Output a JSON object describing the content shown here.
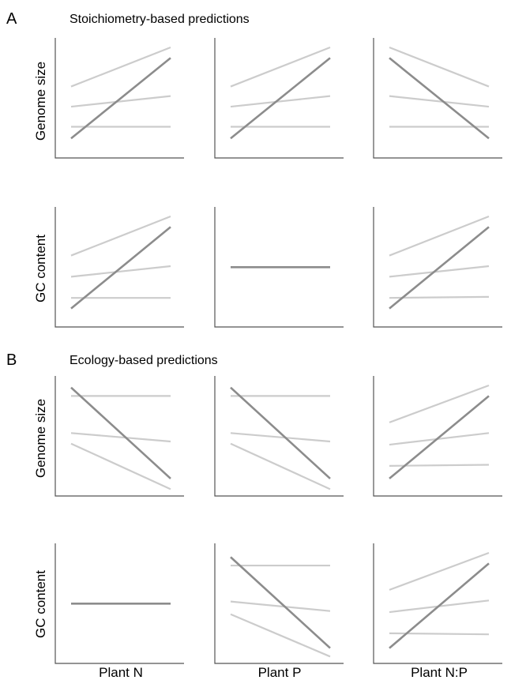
{
  "figure": {
    "sections": [
      {
        "letter": "A",
        "title": "Stoichiometry-based predictions"
      },
      {
        "letter": "B",
        "title": "Ecology-based predictions"
      }
    ],
    "row_labels": [
      "Genome size",
      "GC content",
      "Genome size",
      "GC content"
    ],
    "column_labels": [
      "Plant N",
      "Plant P",
      "Plant N:P"
    ]
  },
  "colors": {
    "emphasis_line": "#8c8c8c",
    "light_line": "#cccccc",
    "axis": "#555555"
  },
  "chart_data": {
    "type": "line",
    "note": "Schematic panels; y values are unitless (0 = bottom, 1 = top); each line goes from x=0 to x=1.",
    "panels": [
      {
        "section": "A",
        "row": "Genome size",
        "column": "Plant N",
        "lines": [
          {
            "style": "light",
            "y": [
              0.63,
              1.0
            ]
          },
          {
            "style": "light",
            "y": [
              0.44,
              0.54
            ]
          },
          {
            "style": "light",
            "y": [
              0.25,
              0.25
            ]
          },
          {
            "style": "dark",
            "y": [
              0.14,
              0.9
            ]
          }
        ]
      },
      {
        "section": "A",
        "row": "Genome size",
        "column": "Plant P",
        "lines": [
          {
            "style": "light",
            "y": [
              0.63,
              1.0
            ]
          },
          {
            "style": "light",
            "y": [
              0.44,
              0.54
            ]
          },
          {
            "style": "light",
            "y": [
              0.25,
              0.25
            ]
          },
          {
            "style": "dark",
            "y": [
              0.14,
              0.9
            ]
          }
        ]
      },
      {
        "section": "A",
        "row": "Genome size",
        "column": "Plant N:P",
        "lines": [
          {
            "style": "light",
            "y": [
              1.0,
              0.63
            ]
          },
          {
            "style": "light",
            "y": [
              0.54,
              0.44
            ]
          },
          {
            "style": "light",
            "y": [
              0.25,
              0.25
            ]
          },
          {
            "style": "dark",
            "y": [
              0.9,
              0.14
            ]
          }
        ]
      },
      {
        "section": "A",
        "row": "GC content",
        "column": "Plant N",
        "lines": [
          {
            "style": "light",
            "y": [
              0.63,
              1.0
            ]
          },
          {
            "style": "light",
            "y": [
              0.43,
              0.53
            ]
          },
          {
            "style": "light",
            "y": [
              0.23,
              0.23
            ]
          },
          {
            "style": "dark",
            "y": [
              0.13,
              0.9
            ]
          }
        ]
      },
      {
        "section": "A",
        "row": "GC content",
        "column": "Plant P",
        "lines": [
          {
            "style": "dark",
            "y": [
              0.52,
              0.52
            ]
          }
        ]
      },
      {
        "section": "A",
        "row": "GC content",
        "column": "Plant N:P",
        "lines": [
          {
            "style": "light",
            "y": [
              0.63,
              1.0
            ]
          },
          {
            "style": "light",
            "y": [
              0.43,
              0.53
            ]
          },
          {
            "style": "light",
            "y": [
              0.23,
              0.24
            ]
          },
          {
            "style": "dark",
            "y": [
              0.13,
              0.9
            ]
          }
        ]
      },
      {
        "section": "B",
        "row": "Genome size",
        "column": "Plant N",
        "lines": [
          {
            "style": "light",
            "y": [
              0.9,
              0.9
            ]
          },
          {
            "style": "light",
            "y": [
              0.55,
              0.47
            ]
          },
          {
            "style": "light",
            "y": [
              0.45,
              0.02
            ]
          },
          {
            "style": "dark",
            "y": [
              0.98,
              0.12
            ]
          }
        ]
      },
      {
        "section": "B",
        "row": "Genome size",
        "column": "Plant P",
        "lines": [
          {
            "style": "light",
            "y": [
              0.9,
              0.9
            ]
          },
          {
            "style": "light",
            "y": [
              0.55,
              0.47
            ]
          },
          {
            "style": "light",
            "y": [
              0.45,
              0.02
            ]
          },
          {
            "style": "dark",
            "y": [
              0.98,
              0.12
            ]
          }
        ]
      },
      {
        "section": "B",
        "row": "Genome size",
        "column": "Plant N:P",
        "lines": [
          {
            "style": "light",
            "y": [
              0.65,
              1.0
            ]
          },
          {
            "style": "light",
            "y": [
              0.44,
              0.55
            ]
          },
          {
            "style": "light",
            "y": [
              0.24,
              0.25
            ]
          },
          {
            "style": "dark",
            "y": [
              0.12,
              0.9
            ]
          }
        ]
      },
      {
        "section": "B",
        "row": "GC content",
        "column": "Plant N",
        "lines": [
          {
            "style": "dark",
            "y": [
              0.52,
              0.52
            ]
          }
        ]
      },
      {
        "section": "B",
        "row": "GC content",
        "column": "Plant P",
        "lines": [
          {
            "style": "light",
            "y": [
              0.88,
              0.88
            ]
          },
          {
            "style": "light",
            "y": [
              0.54,
              0.45
            ]
          },
          {
            "style": "light",
            "y": [
              0.42,
              0.02
            ]
          },
          {
            "style": "dark",
            "y": [
              0.96,
              0.1
            ]
          }
        ]
      },
      {
        "section": "B",
        "row": "GC content",
        "column": "Plant N:P",
        "lines": [
          {
            "style": "light",
            "y": [
              0.65,
              1.0
            ]
          },
          {
            "style": "light",
            "y": [
              0.44,
              0.55
            ]
          },
          {
            "style": "light",
            "y": [
              0.24,
              0.23
            ]
          },
          {
            "style": "dark",
            "y": [
              0.1,
              0.9
            ]
          }
        ]
      }
    ]
  }
}
